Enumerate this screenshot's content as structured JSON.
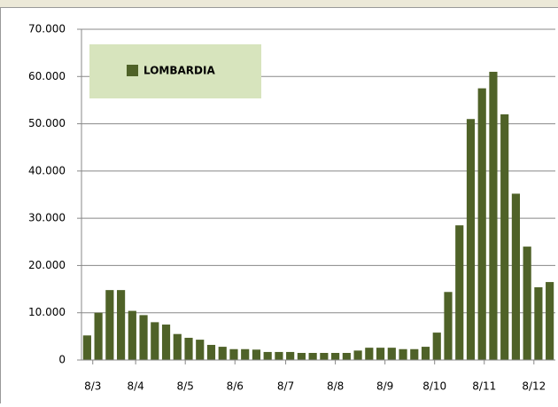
{
  "chart_data": {
    "type": "bar",
    "series": [
      {
        "name": "LOMBARDIA",
        "color": "#4f6228",
        "values": [
          5200,
          10000,
          14800,
          14800,
          10400,
          9500,
          8000,
          7500,
          5500,
          4700,
          4300,
          3200,
          2800,
          2300,
          2300,
          2200,
          1700,
          1700,
          1700,
          1500,
          1500,
          1500,
          1500,
          1500,
          2000,
          2600,
          2600,
          2600,
          2300,
          2300,
          2800,
          5800,
          14400,
          28500,
          51000,
          57500,
          61000,
          52000,
          35200,
          24000,
          15400,
          16500
        ]
      }
    ],
    "x": [
      0,
      1,
      2,
      3,
      4,
      5,
      6,
      7,
      8,
      9,
      10,
      11,
      12,
      13,
      14,
      15,
      16,
      17,
      18,
      19,
      20,
      21,
      22,
      23,
      24,
      25,
      26,
      27,
      28,
      29,
      30,
      31,
      32,
      33,
      34,
      35,
      36,
      37,
      38,
      39,
      40,
      41
    ],
    "xlim": [
      -0.5,
      41.5
    ],
    "xticks": [
      {
        "value": 0.5,
        "label": "8/3"
      },
      {
        "value": 4.3,
        "label": "8/4"
      },
      {
        "value": 8.7,
        "label": "8/5"
      },
      {
        "value": 13.1,
        "label": "8/6"
      },
      {
        "value": 17.6,
        "label": "8/7"
      },
      {
        "value": 22,
        "label": "8/8"
      },
      {
        "value": 26.4,
        "label": "8/9"
      },
      {
        "value": 30.8,
        "label": "8/10"
      },
      {
        "value": 35.2,
        "label": "8/11"
      },
      {
        "value": 39.6,
        "label": "8/12"
      }
    ],
    "ylim": [
      0,
      70000
    ],
    "yticks": [
      0,
      {
        "value": 10000,
        "label": "10.000"
      },
      {
        "value": 20000,
        "label": "20.000"
      },
      {
        "value": 30000,
        "label": "30.000"
      },
      {
        "value": 40000,
        "label": "40.000"
      },
      {
        "value": 50000,
        "label": "50.000"
      },
      {
        "value": 60000,
        "label": "60.000"
      },
      {
        "value": 70000,
        "label": "70.000"
      }
    ],
    "grid": true,
    "legend": "upper left",
    "legend_color": "#d7e4bd"
  }
}
